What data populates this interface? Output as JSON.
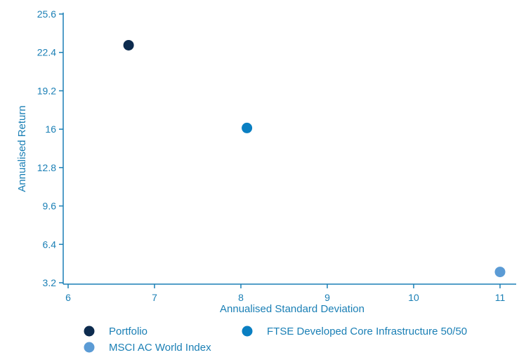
{
  "chart_data": {
    "type": "scatter",
    "title": "",
    "xlabel": "Annualised Standard Deviation",
    "ylabel": "Annualised Return",
    "xlim": [
      6,
      11
    ],
    "ylim": [
      3.2,
      25.6
    ],
    "x_ticks": [
      "6",
      "7",
      "8",
      "9",
      "10",
      "11"
    ],
    "y_ticks": [
      "3.2",
      "6.4",
      "9.6",
      "12.8",
      "16",
      "19.2",
      "22.4",
      "25.6"
    ],
    "grid": false,
    "legend_position": "bottom",
    "series": [
      {
        "name": "Portfolio",
        "color": "#0d2b4e",
        "x": [
          6.7
        ],
        "y": [
          23.0
        ]
      },
      {
        "name": "FTSE Developed Core Infrastructure 50/50",
        "color": "#0a7fc2",
        "x": [
          8.07
        ],
        "y": [
          16.1
        ]
      },
      {
        "name": "MSCI AC World Index",
        "color": "#5b9bd5",
        "x": [
          11.0
        ],
        "y": [
          4.1
        ]
      }
    ]
  }
}
